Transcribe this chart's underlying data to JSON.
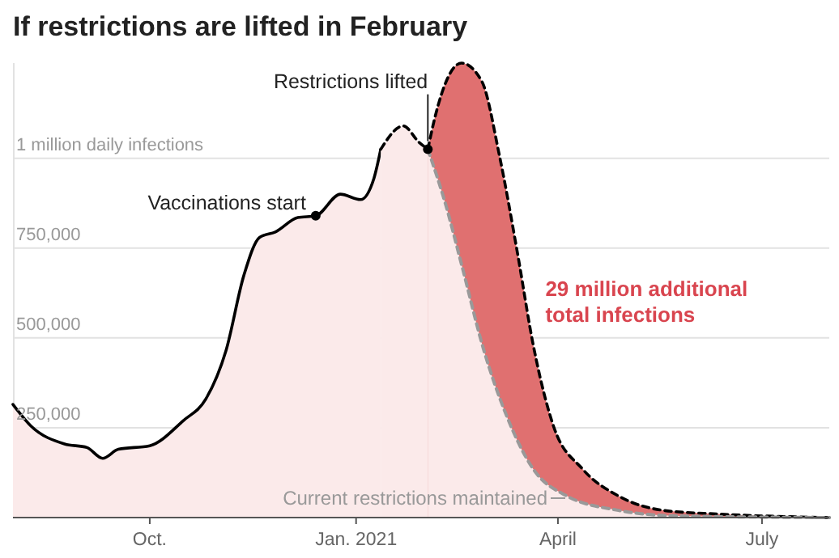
{
  "chart_data": {
    "type": "area",
    "title": "If restrictions are lifted in February",
    "xlim": [
      "2020-08-01",
      "2021-07-31"
    ],
    "ylim": [
      0,
      1265000
    ],
    "xticks": [
      {
        "value": "2020-10-01",
        "label": "Oct."
      },
      {
        "value": "2021-01-01",
        "label": "Jan. 2021"
      },
      {
        "value": "2021-04-01",
        "label": "April"
      },
      {
        "value": "2021-07-01",
        "label": "July"
      }
    ],
    "yticks": [
      {
        "value": 0,
        "label": null
      },
      {
        "value": 250000,
        "label": "250,000"
      },
      {
        "value": 500000,
        "label": "500,000"
      },
      {
        "value": 750000,
        "label": "750,000"
      },
      {
        "value": 1000000,
        "label": "1 million daily infections"
      }
    ],
    "grid": "y",
    "legend": "bottom",
    "series": [
      {
        "color": "#e07070",
        "line_style": "dashed",
        "x": [
          "2021-02-02",
          "2021-02-05",
          "2021-02-17",
          "2021-02-26",
          "2021-03-06",
          "2021-03-14",
          "2021-03-21",
          "2021-03-30",
          "2021-04-12",
          "2021-04-28",
          "2021-05-18",
          "2021-06-11",
          "2021-07-31"
        ],
        "values": [
          1025000,
          1110000,
          1265000,
          1215000,
          1005000,
          735000,
          480000,
          255000,
          135000,
          60000,
          20000,
          10000,
          0
        ]
      },
      {
        "color": "#fbeaea",
        "line_style": "solid",
        "x": [
          "2020-08-01",
          "2020-08-09",
          "2020-08-24",
          "2020-09-03",
          "2020-09-10",
          "2020-09-17",
          "2020-10-01",
          "2020-10-16",
          "2020-10-26",
          "2020-11-04",
          "2020-11-12",
          "2020-11-19",
          "2020-11-26",
          "2020-12-06",
          "2020-12-14",
          "2020-12-25",
          "2021-01-03",
          "2021-01-09",
          "2021-01-12"
        ],
        "values": [
          315000,
          255000,
          205000,
          195000,
          165000,
          190000,
          200000,
          270000,
          330000,
          465000,
          675000,
          780000,
          795000,
          835000,
          840000,
          900000,
          885000,
          945000,
          1025000
        ]
      },
      {
        "color": "#fbeaea",
        "line_style": "dashed",
        "x": [
          "2021-01-12",
          "2021-01-22",
          "2021-01-29",
          "2021-02-02"
        ],
        "values": [
          1025000,
          1090000,
          1045000,
          1025000
        ]
      },
      {
        "name": "Current restrictions maintained",
        "color": "#fbeaea",
        "line_style": "dashed",
        "x": [
          "2021-02-02",
          "2021-02-10",
          "2021-02-17",
          "2021-02-27",
          "2021-03-09",
          "2021-03-21",
          "2021-04-05",
          "2021-04-28",
          "2021-05-22",
          "2021-07-31"
        ],
        "values": [
          1025000,
          870000,
          705000,
          465000,
          285000,
          135000,
          60000,
          20000,
          5000,
          0
        ]
      }
    ],
    "annotations": [
      {
        "text": "Vaccinations start",
        "x": "2020-12-14",
        "y": 840000
      },
      {
        "text": "Restrictions lifted",
        "x": "2021-02-02",
        "y": 1025000
      },
      "29 million additional total infections"
    ]
  }
}
